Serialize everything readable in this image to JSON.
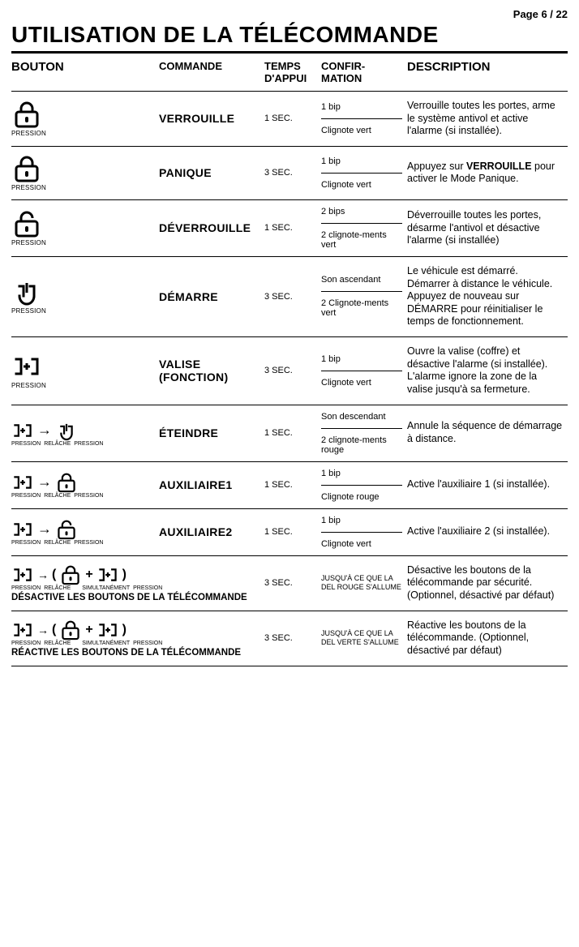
{
  "page_number": "Page 6 / 22",
  "title": "UTILISATION DE LA TÉLÉCOMMANDE",
  "headers": {
    "bouton": "BOUTON",
    "commande": "COMMANDE",
    "temps": "TEMPS D'APPUI",
    "confirmation": "CONFIR-\nMATION",
    "description": "DESCRIPTION"
  },
  "press_label": "PRESSION",
  "release_label": "RELÂCHE",
  "simul_label": "SIMULTANÉMENT",
  "rows": [
    {
      "icon": "lock",
      "press": "single",
      "commande": "VERROUILLE",
      "temps": "1 SEC.",
      "conf1": "1 bip",
      "conf2": "Clignote vert",
      "desc": "Verrouille toutes les portes, arme le système antivol et active l'alarme (si installée)."
    },
    {
      "icon": "lock",
      "press": "single",
      "commande": "PANIQUE",
      "temps": "3 SEC.",
      "conf1": "1 bip",
      "conf2": "Clignote vert",
      "desc_html": "Appuyez sur <b>VERROUILLE</b> pour activer le Mode Panique."
    },
    {
      "icon": "unlock",
      "press": "single",
      "commande": "DÉVERROUILLE",
      "temps": "1 SEC.",
      "conf1": "2 bips",
      "conf2": "2 clignote-ments vert",
      "desc": "Déverrouille toutes les portes, désarme l'antivol et désactive l'alarme (si installée)"
    },
    {
      "icon": "power",
      "press": "single",
      "commande": "DÉMARRE",
      "temps": "3 SEC.",
      "conf1": "Son ascendant",
      "conf2": "2 Clignote-ments vert",
      "desc": "Le véhicule est démarré. Démarrer à distance le véhicule. Appuyez de nouveau sur DÉMARRE pour réinitialiser le temps de fonctionnement."
    },
    {
      "icon": "plus",
      "press": "single",
      "commande": "VALISE (FONCTION)",
      "temps": "3 SEC.",
      "conf1": "1 bip",
      "conf2": "Clignote vert",
      "desc": "Ouvre la valise (coffre) et désactive l'alarme (si installée). L'alarme ignore la zone de la valise jusqu'à sa fermeture."
    },
    {
      "icon": "plus-power",
      "press": "combo",
      "commande": "ÉTEINDRE",
      "temps": "1 SEC.",
      "conf1": "Son descendant",
      "conf2": "2 clignote-ments rouge",
      "desc": "Annule la séquence de démarrage à distance."
    },
    {
      "icon": "plus-lock",
      "press": "combo",
      "commande": "AUXILIAIRE1",
      "temps": "1 SEC.",
      "conf1": "1 bip",
      "conf2": "Clignote rouge",
      "desc": "Active l'auxiliaire 1 (si installée)."
    },
    {
      "icon": "plus-unlock",
      "press": "combo",
      "commande": "AUXILIAIRE2",
      "temps": "1 SEC.",
      "conf1": "1 bip",
      "conf2": "Clignote vert",
      "desc": "Active l'auxiliaire 2 (si installée)."
    },
    {
      "icon": "plus-lockplus",
      "press": "long",
      "long_cmd": "DÉSACTIVE LES BOUTONS DE LA TÉLÉCOMMANDE",
      "temps": "3 SEC.",
      "conf_single": "JUSQU'À CE QUE LA DEL ROUGE S'ALLUME",
      "desc": "Désactive les boutons de la télécommande par sécurité. (Optionnel, désactivé par défaut)"
    },
    {
      "icon": "plus-lockplus",
      "press": "long",
      "long_cmd": "RÉACTIVE LES BOUTONS DE LA TÉLÉCOMMANDE",
      "temps": "3 SEC.",
      "conf_single": "JUSQU'À CE QUE LA DEL VERTE S'ALLUME",
      "desc": "Réactive les boutons de la télécommande. (Optionnel, désactivé par défaut)"
    }
  ]
}
